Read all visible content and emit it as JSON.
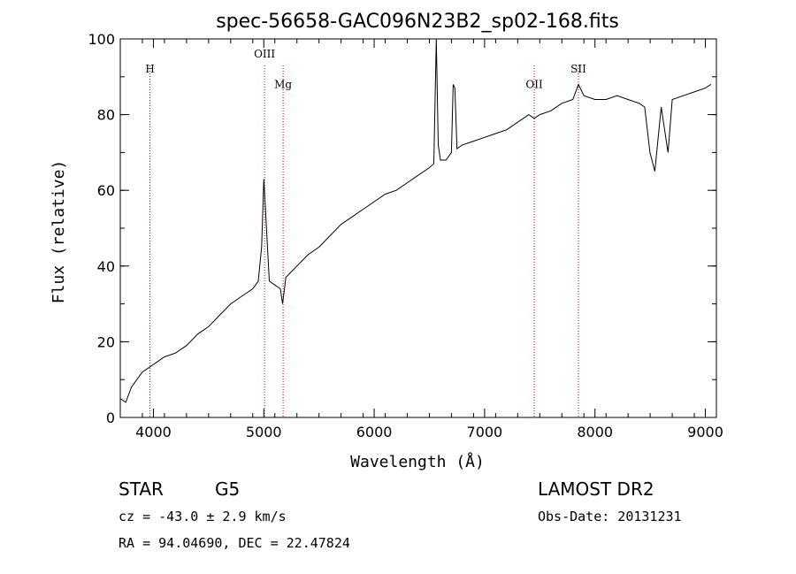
{
  "chart_data": {
    "type": "line",
    "title": "spec-56658-GAC096N23B2_sp02-168.fits",
    "xlabel": "Wavelength (Å)",
    "ylabel": "Flux (relative)",
    "xlim": [
      3700,
      9100
    ],
    "ylim": [
      0,
      100
    ],
    "xticks": [
      4000,
      5000,
      6000,
      7000,
      8000,
      9000
    ],
    "yticks": [
      0,
      20,
      40,
      60,
      80,
      100
    ],
    "grid": false,
    "line_color": "#000000",
    "marker_color": "#cc0000",
    "series": [
      {
        "x": [
          3700,
          3750,
          3800,
          3850,
          3900,
          3950,
          4000,
          4050,
          4100,
          4200,
          4300,
          4400,
          4500,
          4600,
          4700,
          4800,
          4900,
          4950,
          4980,
          5000,
          5050,
          5100,
          5150,
          5170,
          5200,
          5300,
          5400,
          5500,
          5600,
          5700,
          5800,
          5900,
          6000,
          6100,
          6200,
          6300,
          6400,
          6500,
          6540,
          6563,
          6580,
          6600,
          6650,
          6700,
          6716,
          6731,
          6750,
          6800,
          6900,
          7000,
          7100,
          7200,
          7300,
          7400,
          7450,
          7500,
          7600,
          7700,
          7800,
          7850,
          7900,
          8000,
          8100,
          8200,
          8300,
          8400,
          8450,
          8498,
          8542,
          8600,
          8662,
          8700,
          8800,
          8900,
          9000,
          9050
        ],
        "y": [
          5,
          4,
          8,
          10,
          12,
          13,
          14,
          15,
          16,
          17,
          19,
          22,
          24,
          27,
          30,
          32,
          34,
          36,
          45,
          63,
          36,
          35,
          34,
          30,
          37,
          40,
          43,
          45,
          48,
          51,
          53,
          55,
          57,
          59,
          60,
          62,
          64,
          66,
          67,
          100,
          72,
          68,
          68,
          70,
          88,
          87,
          71,
          72,
          73,
          74,
          75,
          76,
          78,
          80,
          79,
          80,
          81,
          83,
          84,
          88,
          85,
          84,
          84,
          85,
          84,
          83,
          82,
          70,
          65,
          82,
          70,
          84,
          85,
          86,
          87,
          88
        ]
      }
    ],
    "annotations": [
      {
        "label": "H",
        "x": 3969,
        "label_y": 92
      },
      {
        "label": "OIII",
        "x": 5007,
        "label_y": 96
      },
      {
        "label": "Mg",
        "x": 5175,
        "label_y": 88
      },
      {
        "label": "OII",
        "x": 7450,
        "label_y": 88
      },
      {
        "label": "SII",
        "x": 7850,
        "label_y": 92
      }
    ]
  },
  "info": {
    "class_label": "STAR",
    "subclass_label": "G5",
    "survey": "LAMOST DR2",
    "cz": "cz = -43.0 ± 2.9 km/s",
    "obs_date": "Obs-Date: 20131231",
    "coords": "RA =  94.04690, DEC =  22.47824"
  }
}
